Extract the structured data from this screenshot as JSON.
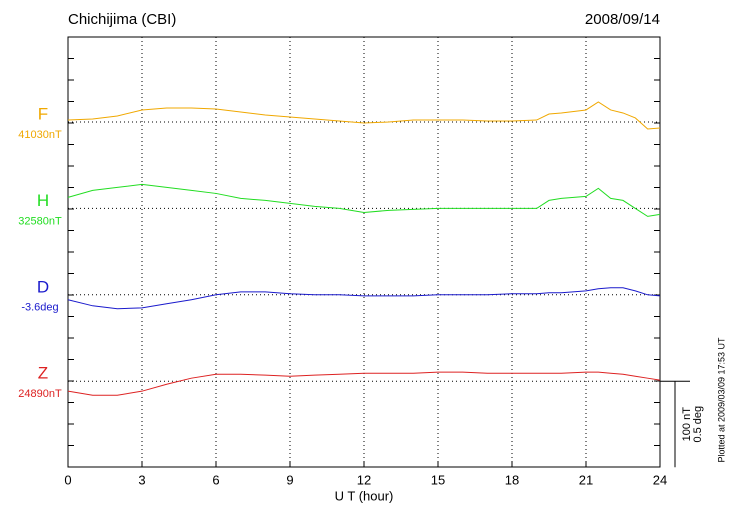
{
  "chart_data": {
    "type": "line",
    "title": "Chichijima (CBI)",
    "date": "2008/09/14",
    "x_label": "U T (hour)",
    "xlim": [
      0,
      24
    ],
    "xticks": [
      0,
      3,
      6,
      9,
      12,
      15,
      18,
      21,
      24
    ],
    "grid": true,
    "scale_bars": [
      {
        "value": 100,
        "label": "100 nT"
      },
      {
        "value": 0.5,
        "label": "0.5 deg"
      }
    ],
    "footnote": "Plotted at 2009/03/09 17:53 UT",
    "x": [
      0,
      1,
      2,
      3,
      4,
      5,
      6,
      7,
      8,
      9,
      10,
      11,
      12,
      13,
      14,
      15,
      16,
      17,
      18,
      19,
      19.5,
      20,
      21,
      21.5,
      22,
      22.5,
      23,
      23.5,
      24
    ],
    "series": [
      {
        "name": "F",
        "baseline_label": "41030nT",
        "color": "#f0a800",
        "values": [
          2.3,
          3.5,
          7,
          14,
          16.3,
          16.3,
          15.1,
          11.6,
          8.1,
          5.8,
          3.5,
          1.2,
          -1.2,
          0,
          2.3,
          2.3,
          2.3,
          1.2,
          1.2,
          2.3,
          9.3,
          10.5,
          14,
          23.3,
          14,
          10.5,
          4.7,
          -8.1,
          -7
        ]
      },
      {
        "name": "H",
        "baseline_label": "32580nT",
        "color": "#22dd22",
        "values": [
          12.8,
          20.9,
          24.4,
          27.9,
          24.4,
          20.9,
          17.4,
          11.6,
          9.3,
          5.8,
          2.3,
          0,
          -4.7,
          -2.3,
          -1.2,
          0,
          0,
          0,
          0,
          0,
          9.3,
          11.6,
          14,
          23.3,
          11.6,
          9.3,
          0,
          -9.3,
          -7
        ]
      },
      {
        "name": "D",
        "baseline_label": "-3.6deg",
        "color": "#1a1acc",
        "axis": "y2",
        "values": [
          -0.029,
          -0.064,
          -0.081,
          -0.076,
          -0.052,
          -0.029,
          0,
          0.017,
          0.017,
          0.006,
          0,
          0,
          -0.006,
          -0.006,
          -0.006,
          0,
          0,
          0,
          0.006,
          0.006,
          0.012,
          0.012,
          0.023,
          0.035,
          0.041,
          0.041,
          0.023,
          0,
          -0.006
        ]
      },
      {
        "name": "Z",
        "baseline_label": "24890nT",
        "color": "#dd2222",
        "values": [
          -11.6,
          -16.3,
          -16.3,
          -11.6,
          -3.5,
          3.5,
          8.1,
          8.1,
          7,
          5.8,
          7,
          8.1,
          9.3,
          9.3,
          9.3,
          10.5,
          10.5,
          9.3,
          9.3,
          9.3,
          9.3,
          9.3,
          10.5,
          10.5,
          9.3,
          8.1,
          5.8,
          3.5,
          1.2
        ]
      }
    ]
  }
}
